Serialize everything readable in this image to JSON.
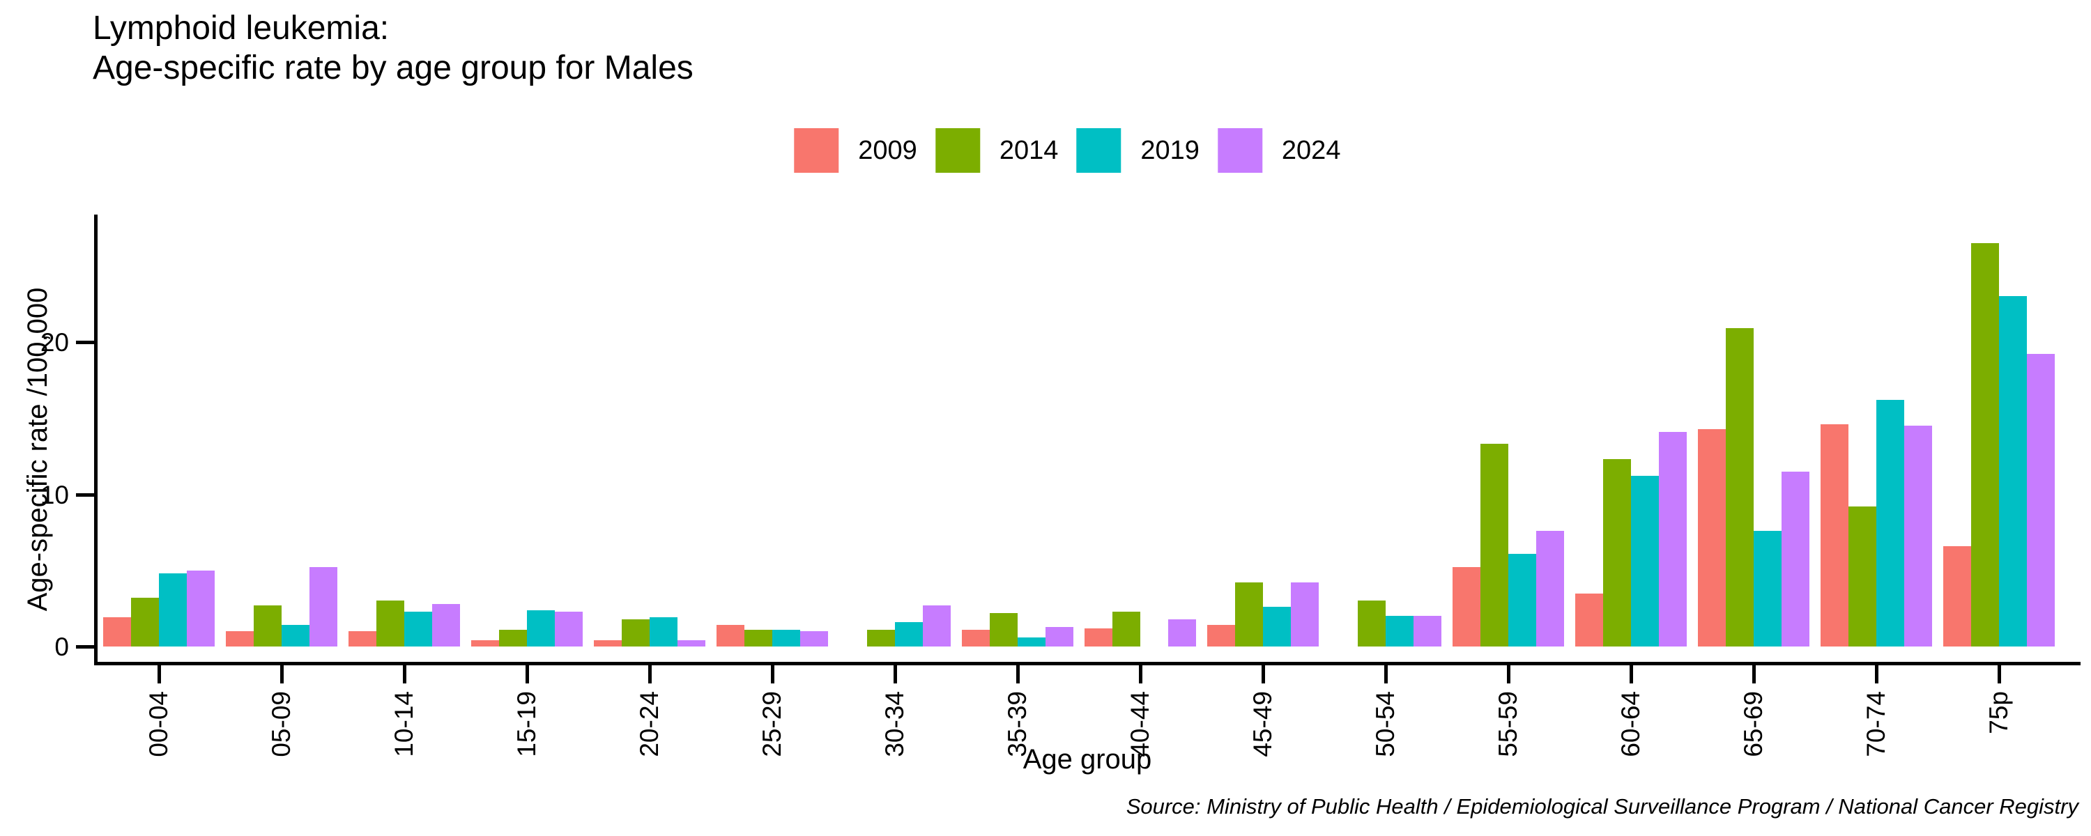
{
  "title": {
    "line1": "Lymphoid leukemia:",
    "line2": "Age-specific rate by age group for Males"
  },
  "source_note": "Source: Ministry of Public Health / Epidemiological Surveillance Program / National Cancer Registry",
  "chart_data": {
    "type": "bar",
    "title": "Lymphoid leukemia: Age-specific rate by age group for Males",
    "xlabel": "Age group",
    "ylabel": "Age-specific rate /100,000",
    "ylim": [
      0,
      28
    ],
    "yticks": [
      0,
      10,
      20
    ],
    "grid": false,
    "legend_position": "top-center",
    "background": "#ffffff",
    "axis_color": "#000000",
    "categories": [
      "00-04",
      "05-09",
      "10-14",
      "15-19",
      "20-24",
      "25-29",
      "30-34",
      "35-39",
      "40-44",
      "45-49",
      "50-54",
      "55-59",
      "60-64",
      "65-69",
      "70-74",
      "75p"
    ],
    "series": [
      {
        "name": "2009",
        "color": "#F8766D",
        "values": [
          1.9,
          1.0,
          1.0,
          0.4,
          0.4,
          1.4,
          0,
          1.1,
          1.2,
          1.4,
          0,
          5.2,
          3.5,
          14.3,
          14.6,
          6.6
        ]
      },
      {
        "name": "2014",
        "color": "#7CAE00",
        "values": [
          3.2,
          2.7,
          3.0,
          1.1,
          1.8,
          1.1,
          1.1,
          2.2,
          2.3,
          4.2,
          3.0,
          13.3,
          12.3,
          20.9,
          9.2,
          26.5
        ]
      },
      {
        "name": "2019",
        "color": "#00BFC4",
        "values": [
          4.8,
          1.4,
          2.3,
          2.4,
          1.9,
          1.1,
          1.6,
          0.6,
          0,
          2.6,
          2.0,
          6.1,
          11.2,
          7.6,
          16.2,
          23.0
        ]
      },
      {
        "name": "2024",
        "color": "#C77CFF",
        "values": [
          5.0,
          5.2,
          2.8,
          2.3,
          0.4,
          1.0,
          2.7,
          1.3,
          1.8,
          4.2,
          2.0,
          7.6,
          14.1,
          11.5,
          14.5,
          19.2
        ]
      }
    ]
  }
}
